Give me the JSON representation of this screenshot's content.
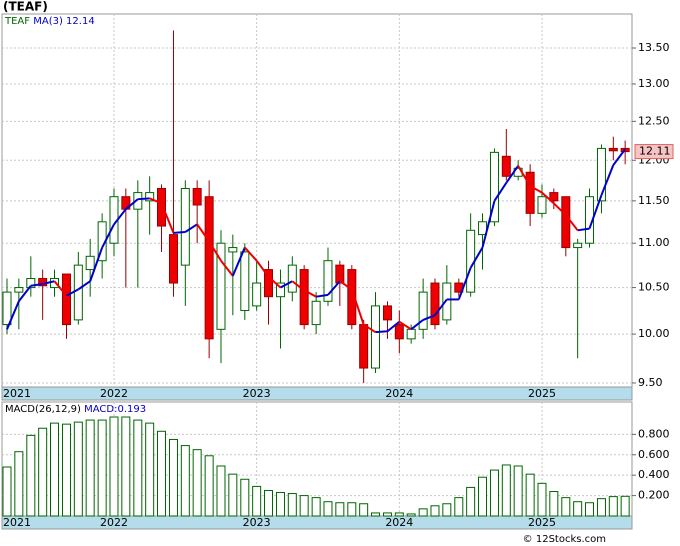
{
  "chart_data": [
    {
      "type": "candlestick",
      "title": "(TEAF)",
      "ticker": "TEAF",
      "x": [
        2021.25,
        2021.333,
        2021.417,
        2021.5,
        2021.583,
        2021.667,
        2021.75,
        2021.833,
        2021.917,
        2022.0,
        2022.083,
        2022.167,
        2022.25,
        2022.333,
        2022.417,
        2022.5,
        2022.583,
        2022.667,
        2022.75,
        2022.833,
        2022.917,
        2023.0,
        2023.083,
        2023.167,
        2023.25,
        2023.333,
        2023.417,
        2023.5,
        2023.583,
        2023.667,
        2023.75,
        2023.833,
        2023.917,
        2024.0,
        2024.083,
        2024.167,
        2024.25,
        2024.333,
        2024.417,
        2024.5,
        2024.583,
        2024.667,
        2024.75,
        2024.833,
        2024.917,
        2025.0,
        2025.083,
        2025.167,
        2025.25,
        2025.333,
        2025.417,
        2025.5,
        2025.583
      ],
      "open": [
        10.1,
        10.45,
        10.5,
        10.6,
        10.5,
        10.65,
        10.15,
        10.7,
        10.8,
        11.0,
        11.55,
        11.4,
        11.5,
        11.65,
        11.1,
        10.75,
        11.65,
        11.55,
        10.05,
        10.9,
        10.25,
        10.3,
        10.7,
        10.4,
        10.45,
        10.7,
        10.1,
        10.35,
        10.75,
        10.7,
        10.1,
        9.65,
        10.3,
        10.1,
        9.95,
        10.05,
        10.55,
        10.15,
        10.55,
        10.45,
        11.1,
        11.25,
        12.05,
        11.8,
        11.85,
        11.35,
        11.6,
        11.55,
        10.95,
        11.0,
        11.5,
        12.15,
        12.15
      ],
      "high": [
        10.6,
        10.6,
        10.85,
        10.7,
        10.7,
        10.65,
        10.9,
        11.05,
        11.35,
        11.65,
        11.65,
        11.75,
        11.8,
        11.7,
        13.75,
        11.75,
        11.75,
        11.75,
        11.15,
        11.1,
        11.0,
        10.8,
        10.8,
        10.7,
        10.85,
        10.75,
        10.45,
        10.95,
        10.8,
        10.75,
        10.15,
        10.45,
        10.35,
        10.25,
        10.1,
        10.6,
        10.6,
        10.75,
        10.6,
        11.35,
        11.35,
        12.15,
        12.4,
        12.0,
        11.95,
        11.7,
        11.65,
        11.55,
        11.05,
        11.65,
        12.2,
        12.3,
        12.25
      ],
      "low": [
        10.0,
        10.05,
        10.4,
        10.15,
        10.4,
        9.95,
        10.1,
        10.4,
        10.6,
        10.85,
        10.5,
        10.5,
        11.1,
        10.9,
        10.4,
        10.3,
        11.0,
        9.75,
        9.7,
        10.2,
        10.15,
        10.25,
        10.1,
        9.85,
        10.35,
        10.05,
        10.0,
        10.3,
        10.3,
        10.05,
        9.5,
        9.6,
        9.95,
        9.8,
        9.9,
        9.95,
        10.05,
        10.1,
        10.4,
        10.4,
        10.7,
        11.2,
        11.75,
        11.75,
        11.2,
        11.3,
        11.4,
        10.85,
        9.75,
        10.95,
        11.35,
        12.0,
        11.95
      ],
      "close": [
        10.45,
        10.5,
        10.6,
        10.52,
        10.6,
        10.1,
        10.75,
        10.85,
        11.25,
        11.55,
        11.4,
        11.6,
        11.6,
        11.2,
        10.55,
        11.65,
        11.45,
        9.95,
        11.0,
        10.95,
        10.9,
        10.55,
        10.4,
        10.55,
        10.75,
        10.1,
        10.35,
        10.8,
        10.55,
        10.1,
        9.65,
        10.3,
        10.15,
        9.95,
        10.05,
        10.45,
        10.1,
        10.55,
        10.45,
        11.15,
        11.25,
        12.1,
        11.8,
        11.9,
        11.35,
        11.55,
        11.5,
        10.95,
        11.0,
        11.55,
        12.15,
        12.12,
        12.11
      ],
      "up_color": "#006600",
      "down_color": "#ee0000",
      "ma": {
        "name": "MA(3)",
        "up_color": "#0000cc",
        "down_color": "#ee0000",
        "values": [
          10.05,
          10.35,
          10.52,
          10.54,
          10.57,
          10.41,
          10.48,
          10.57,
          10.95,
          11.22,
          11.4,
          11.52,
          11.53,
          11.47,
          11.12,
          11.13,
          11.22,
          11.02,
          10.8,
          10.63,
          10.95,
          10.8,
          10.62,
          10.5,
          10.57,
          10.47,
          10.4,
          10.42,
          10.57,
          10.48,
          10.1,
          10.02,
          10.03,
          10.13,
          10.05,
          10.15,
          10.2,
          10.37,
          10.37,
          10.72,
          10.95,
          11.5,
          11.72,
          11.93,
          11.68,
          11.6,
          11.47,
          11.33,
          11.15,
          11.17,
          11.57,
          11.94,
          12.14
        ]
      },
      "log_scale": true,
      "grid": true,
      "ylim": [
        9.46,
        13.99
      ],
      "yticks": [
        {
          "value": 9.5,
          "label": "9.50"
        },
        {
          "value": 10,
          "label": "10.00"
        },
        {
          "value": 10.5,
          "label": "10.50"
        },
        {
          "value": 11,
          "label": "11.00"
        },
        {
          "value": 11.5,
          "label": "11.50"
        },
        {
          "value": 12,
          "label": "12.00"
        },
        {
          "value": 12.5,
          "label": "12.50"
        },
        {
          "value": 13,
          "label": "13.00"
        },
        {
          "value": 13.5,
          "label": "13.50"
        }
      ],
      "xlim": [
        2021.215,
        2025.631
      ],
      "xticks": [
        2021,
        2022,
        2023,
        2024,
        2025
      ]
    },
    {
      "type": "bar",
      "name": "MACD(26,12,9)",
      "series_label": "MACD:",
      "color": "#006600",
      "values": [
        0.48,
        0.63,
        0.79,
        0.86,
        0.91,
        0.9,
        0.92,
        0.94,
        0.94,
        0.97,
        0.97,
        0.94,
        0.91,
        0.83,
        0.75,
        0.69,
        0.65,
        0.59,
        0.49,
        0.41,
        0.36,
        0.29,
        0.25,
        0.23,
        0.22,
        0.2,
        0.18,
        0.14,
        0.13,
        0.13,
        0.12,
        0.03,
        0.03,
        0.03,
        0.02,
        0.07,
        0.1,
        0.12,
        0.18,
        0.28,
        0.38,
        0.45,
        0.5,
        0.49,
        0.41,
        0.32,
        0.24,
        0.18,
        0.14,
        0.13,
        0.17,
        0.19,
        0.193
      ],
      "ylim": [
        0,
        1.117
      ],
      "grid": true,
      "yticks": [
        {
          "value": 0.2,
          "label": "0.200"
        },
        {
          "value": 0.4,
          "label": "0.400"
        },
        {
          "value": 0.6,
          "label": "0.600"
        },
        {
          "value": 0.8,
          "label": "0.800"
        }
      ]
    }
  ],
  "credit": "© 12Stocks.com"
}
